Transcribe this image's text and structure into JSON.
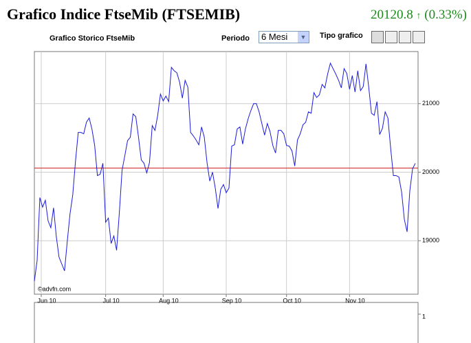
{
  "header": {
    "title": "Grafico Indice FtseMib (FTSEMIB)",
    "price": "20120.8",
    "change": "(0.33%)"
  },
  "controls": {
    "subtitle": "Grafico Storico FtseMib",
    "period_label": "Periodo",
    "period_value": "6 Mesi",
    "type_label": "Tipo grafico"
  },
  "chart_data": {
    "type": "line",
    "watermark": "©advfn.com",
    "series": [
      {
        "name": "FTSEMIB",
        "color": "#1a1adb",
        "values": [
          18410,
          18710,
          19630,
          19490,
          19590,
          19290,
          19190,
          19480,
          19060,
          18760,
          18660,
          18560,
          18990,
          19390,
          19670,
          20160,
          20580,
          20580,
          20560,
          20730,
          20790,
          20630,
          20390,
          19950,
          19970,
          20130,
          19270,
          19330,
          18960,
          19070,
          18860,
          19410,
          20030,
          20240,
          20460,
          20510,
          20850,
          20810,
          20510,
          20180,
          20130,
          19990,
          20140,
          20680,
          20610,
          20830,
          21140,
          21040,
          21110,
          21030,
          21530,
          21480,
          21450,
          21310,
          21080,
          21340,
          21240,
          20580,
          20530,
          20470,
          20400,
          20660,
          20510,
          20140,
          19870,
          20000,
          19770,
          19470,
          19750,
          19820,
          19700,
          19770,
          20380,
          20400,
          20630,
          20660,
          20410,
          20630,
          20780,
          20900,
          21000,
          21000,
          20880,
          20710,
          20540,
          20710,
          20590,
          20390,
          20280,
          20610,
          20610,
          20560,
          20390,
          20380,
          20310,
          20090,
          20470,
          20560,
          20690,
          20730,
          20880,
          20860,
          21160,
          21090,
          21130,
          21280,
          21230,
          21430,
          21590,
          21510,
          21430,
          21340,
          21230,
          21510,
          21440,
          21210,
          21410,
          21170,
          21480,
          21190,
          21250,
          21580,
          21240,
          20860,
          20830,
          21030,
          20550,
          20640,
          20880,
          20790,
          20350,
          19950,
          19950,
          19930,
          19710,
          19310,
          19130,
          19730,
          20050,
          20130
        ]
      }
    ],
    "reference_line": {
      "value": 20060,
      "color": "#d42020"
    },
    "xlim": [
      0,
      140
    ],
    "xticks": [
      {
        "value": 2.5,
        "label": "Jun 10"
      },
      {
        "value": 26,
        "label": "Jul 10"
      },
      {
        "value": 47,
        "label": "Aug 10"
      },
      {
        "value": 70,
        "label": "Sep 10"
      },
      {
        "value": 92,
        "label": "Oct 10"
      },
      {
        "value": 115,
        "label": "Nov 10"
      }
    ],
    "ylim": [
      18220,
      21760
    ],
    "yticks": [
      19000,
      20000,
      21000
    ],
    "grid": true,
    "lower_panel": {
      "yticks": [
        1
      ]
    }
  }
}
